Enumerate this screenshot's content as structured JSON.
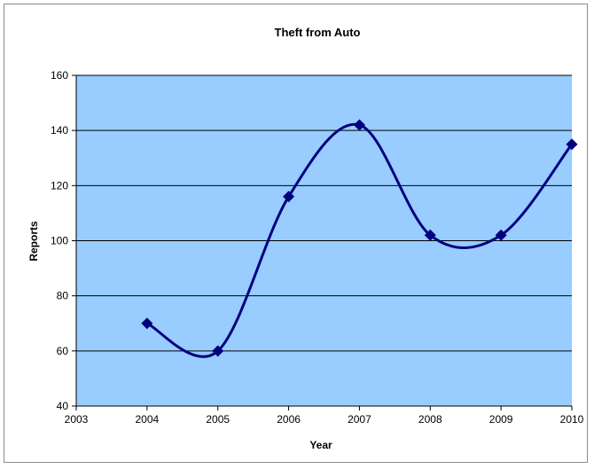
{
  "chart_data": {
    "type": "line",
    "title": "Theft from Auto",
    "xlabel": "Year",
    "ylabel": "Reports",
    "x": [
      2004,
      2005,
      2006,
      2007,
      2008,
      2009,
      2010
    ],
    "values": [
      70,
      60,
      116,
      142,
      102,
      102,
      135
    ],
    "xlim": [
      2003,
      2010
    ],
    "ylim": [
      40,
      160
    ],
    "x_ticks": [
      "2003",
      "2004",
      "2005",
      "2006",
      "2007",
      "2008",
      "2009",
      "2010"
    ],
    "y_ticks": [
      "40",
      "60",
      "80",
      "100",
      "120",
      "140",
      "160"
    ],
    "grid": true,
    "smoothed": true,
    "marker": "diamond",
    "colors": {
      "plot_background": "#99ccff",
      "line": "#000080",
      "gridline": "#000000"
    }
  }
}
